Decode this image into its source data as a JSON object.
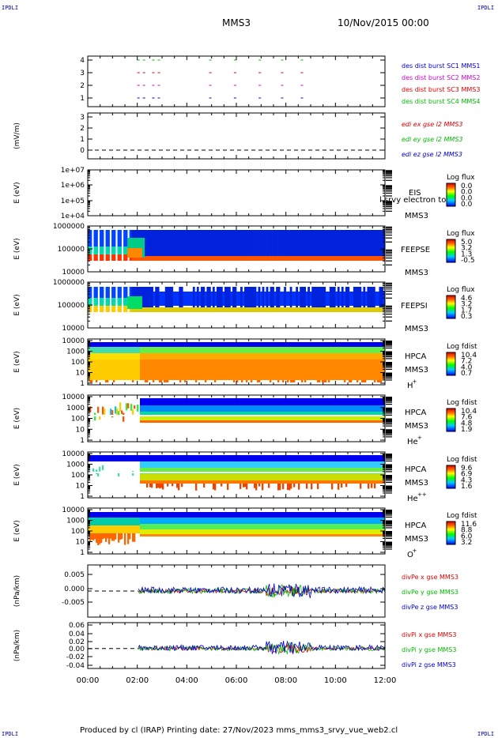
{
  "corners": {
    "tl": "IPDLI",
    "tr": "IPDLI",
    "bl": "IPDLI",
    "br": "IPDLI"
  },
  "header": {
    "title": "MMS3",
    "date": "10/Nov/2015 00:00"
  },
  "footer": {
    "text": "Produced by cl (IRAP)   Printing date: 27/Nov/2023   mms_mms3_srvy_vue_web2.cl"
  },
  "x_axis": {
    "ticks": [
      "00:00",
      "02:00",
      "04:00",
      "06:00",
      "08:00",
      "10:00",
      "12:00"
    ]
  },
  "panels": {
    "p1": {
      "yticks": [
        "4",
        "3",
        "2",
        "1"
      ],
      "legend": [
        {
          "text": "des dist burst SC1 MMS1",
          "color": "#0000cc"
        },
        {
          "text": "des dist burst SC2 MMS2",
          "color": "#cc00cc"
        },
        {
          "text": "des dist burst SC3 MMS3",
          "color": "#dd0000"
        },
        {
          "text": "des dist burst SC4 MMS4",
          "color": "#00bb00"
        }
      ]
    },
    "p2": {
      "ylabel": "(mV/m)",
      "yticks": [
        "3",
        "2",
        "1",
        "0"
      ],
      "legend": [
        {
          "text": "edi ex gse l2 MMS3",
          "color": "#dd0000"
        },
        {
          "text": "edi ey gse l2 MMS3",
          "color": "#00bb00"
        },
        {
          "text": "edi ez gse l2 MMS3",
          "color": "#0000cc"
        }
      ]
    },
    "p3": {
      "ylabel": "E (eV)",
      "yticks": [
        "1e+07",
        "1e+06",
        "1e+05",
        "1e+04"
      ],
      "inst": "EIS",
      "extra": "l srvy electron to",
      "sc": "MMS3",
      "cb_title": "Log flux",
      "cb_ticks": [
        "0.0",
        "0.0",
        "0.0",
        "0.0"
      ]
    },
    "p4": {
      "ylabel": "E (eV)",
      "yticks": [
        "1000000",
        "100000",
        "10000"
      ],
      "inst": "FEEPSE",
      "sc": "MMS3",
      "cb_title": "Log flux",
      "cb_ticks": [
        "5.0",
        "3.2",
        "1.3",
        "-0.5"
      ]
    },
    "p5": {
      "ylabel": "E (eV)",
      "yticks": [
        "1000000",
        "100000",
        "10000"
      ],
      "inst": "FEEPSI",
      "sc": "MMS3",
      "cb_title": "Log flux",
      "cb_ticks": [
        "4.6",
        "3.2",
        "1.7",
        "0.3"
      ]
    },
    "p6": {
      "ylabel": "E (eV)",
      "yticks": [
        "10000",
        "1000",
        "100",
        "10",
        "1"
      ],
      "inst": "HPCA",
      "sc": "MMS3",
      "species": "H",
      "sup": "+",
      "cb_title": "Log fdist",
      "cb_ticks": [
        "10.4",
        "7.2",
        "4.0",
        "0.7"
      ]
    },
    "p7": {
      "ylabel": "E (eV)",
      "yticks": [
        "10000",
        "1000",
        "100",
        "10",
        "1"
      ],
      "inst": "HPCA",
      "sc": "MMS3",
      "species": "He",
      "sup": "+",
      "cb_title": "Log fdist",
      "cb_ticks": [
        "10.4",
        "7.6",
        "4.8",
        "1.9"
      ]
    },
    "p8": {
      "ylabel": "E (eV)",
      "yticks": [
        "10000",
        "1000",
        "100",
        "10",
        "1"
      ],
      "inst": "HPCA",
      "sc": "MMS3",
      "species": "He",
      "sup": "++",
      "cb_title": "Log fdist",
      "cb_ticks": [
        "9.6",
        "6.9",
        "4.3",
        "1.6"
      ]
    },
    "p9": {
      "ylabel": "E (eV)",
      "yticks": [
        "10000",
        "1000",
        "100",
        "10",
        "1"
      ],
      "inst": "HPCA",
      "sc": "MMS3",
      "species": "O",
      "sup": "+",
      "cb_title": "Log fdist",
      "cb_ticks": [
        "11.6",
        "8.8",
        "6.0",
        "3.2"
      ]
    },
    "p10": {
      "ylabel": "(nPa/km)",
      "yticks": [
        "0.005",
        "0.000",
        "-0.005"
      ],
      "legend": [
        {
          "text": "divPe x gse MMS3",
          "color": "#dd0000"
        },
        {
          "text": "divPe y gse MMS3",
          "color": "#00bb00"
        },
        {
          "text": "divPe z gse MMS3",
          "color": "#0000cc"
        }
      ]
    },
    "p11": {
      "ylabel": "(nPa/km)",
      "yticks": [
        "0.06",
        "0.04",
        "0.02",
        "0.00",
        "-0.02",
        "-0.04"
      ],
      "legend": [
        {
          "text": "divPi x gse MMS3",
          "color": "#dd0000"
        },
        {
          "text": "divPi y gse MMS3",
          "color": "#00bb00"
        },
        {
          "text": "divPi z gse MMS3",
          "color": "#0000cc"
        }
      ]
    }
  },
  "chart_data": {
    "type": "heatmap",
    "x_range_hours": [
      0,
      12
    ],
    "data_start_hours": 2.05,
    "burst_intervals_hours": [
      2.0,
      2.6,
      4.9,
      5.9,
      6.9,
      7.8,
      8.6
    ],
    "divPe_range": [
      -0.008,
      0.008
    ],
    "divPi_range": [
      -0.05,
      0.065
    ]
  }
}
